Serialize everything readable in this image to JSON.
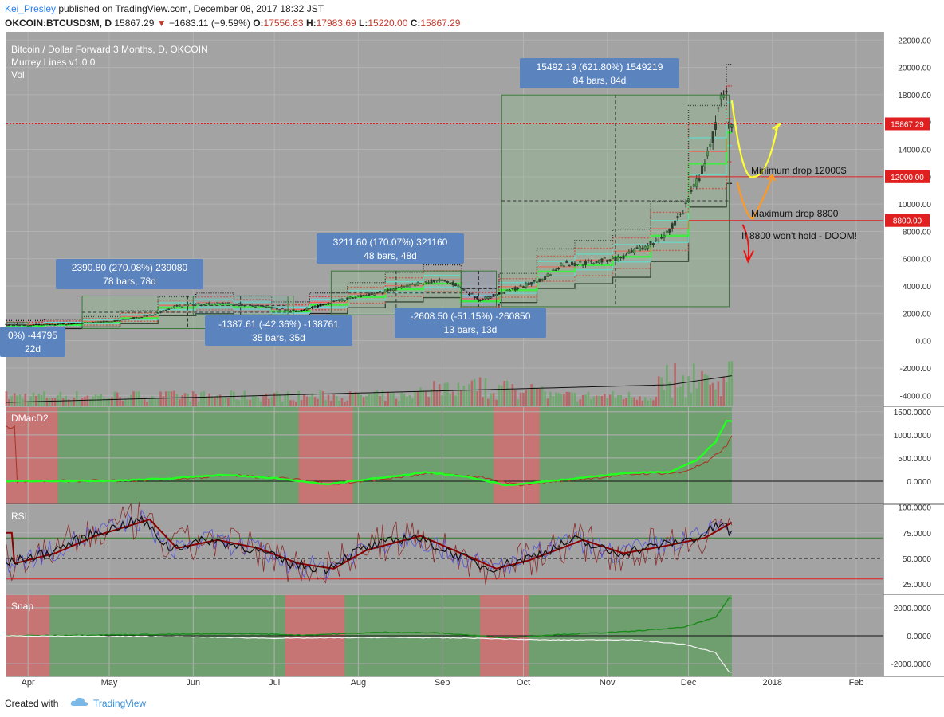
{
  "header": {
    "author": "Kei_Presley",
    "published": "published on TradingView.com, December 08, 2017 18:32 JST",
    "symbol": "OKCOIN:BTCUSD3M, D",
    "last": "15867.29",
    "change": "−1683.11 (−9.59%)",
    "o_label": "O:",
    "o_value": "17556.83",
    "h_label": "H:",
    "h_value": "17983.69",
    "l_label": "L:",
    "l_value": "15220.00",
    "c_label": "C:",
    "c_value": "15867.29"
  },
  "legend": {
    "title": "Bitcoin / Dollar Forward 3 Months, D, OKCOIN",
    "study1": "Murrey Lines v1.0.0",
    "study2": "Vol"
  },
  "footer": {
    "created": "Created with",
    "brand": "TradingView"
  },
  "colors": {
    "bg": "#a3a3a3",
    "green_zone": "#6f9e6f",
    "red_zone": "#c77474",
    "bright_green": "#22ff22",
    "yellow": "#ffff33",
    "orange": "#ff9922",
    "red_arrow": "#ee1111",
    "label_blue": "#5b84bf"
  },
  "chart_data": [
    {
      "panel": "main",
      "type": "candlestick",
      "title": "Bitcoin / Dollar Forward 3 Months, D, OKCOIN",
      "ylim": [
        -4800,
        22600
      ],
      "yticks": [
        "22000.00",
        "20000.00",
        "18000.00",
        "16000.00",
        "14000.00",
        "12000.00",
        "10000.00",
        "8000.00",
        "6000.00",
        "4000.00",
        "2000.00",
        "0.00",
        "-2000.00",
        "-4000.00"
      ],
      "ytick_values": [
        22000,
        20000,
        18000,
        16000,
        14000,
        12000,
        10000,
        8000,
        6000,
        4000,
        2000,
        0,
        -2000,
        -4000
      ],
      "x_tick_labels": [
        "Apr",
        "May",
        "Jun",
        "Jul",
        "Aug",
        "Sep",
        "Oct",
        "Nov",
        "Dec",
        "2018",
        "Feb"
      ],
      "x_tick_days": [
        8,
        38,
        69,
        99,
        130,
        161,
        191,
        222,
        252,
        283,
        314
      ],
      "xlim": [
        0,
        324
      ],
      "price_path": [
        [
          0,
          1200
        ],
        [
          8,
          1150
        ],
        [
          25,
          1250
        ],
        [
          40,
          1450
        ],
        [
          55,
          1900
        ],
        [
          62,
          2500
        ],
        [
          70,
          2700
        ],
        [
          80,
          2750
        ],
        [
          95,
          2500
        ],
        [
          108,
          2150
        ],
        [
          118,
          2700
        ],
        [
          128,
          3150
        ],
        [
          140,
          3600
        ],
        [
          152,
          4150
        ],
        [
          160,
          4400
        ],
        [
          166,
          4100
        ],
        [
          175,
          3000
        ],
        [
          185,
          3600
        ],
        [
          198,
          4450
        ],
        [
          205,
          5600
        ],
        [
          215,
          5700
        ],
        [
          228,
          6100
        ],
        [
          240,
          7300
        ],
        [
          245,
          8000
        ],
        [
          250,
          9500
        ],
        [
          256,
          12000
        ],
        [
          260,
          14000
        ],
        [
          264,
          17500
        ],
        [
          266,
          18000
        ],
        [
          267,
          16000
        ],
        [
          268,
          15867
        ]
      ],
      "last_price": "15867.29",
      "level_badges": [
        "12000.00",
        "8800.00"
      ],
      "level_values": [
        12000,
        8800
      ],
      "measure_boxes": [
        {
          "text1": "2390.80 (270.08%) 239080",
          "text2": "78 bars, 78d",
          "d1": 28,
          "d2": 106,
          "p1": 885,
          "p2": 3276
        },
        {
          "text1": "3211.60 (170.07%) 321160",
          "text2": "48 bars, 48d",
          "d1": 120,
          "d2": 168,
          "p1": 1888,
          "p2": 5100
        },
        {
          "text1": "15492.19 (621.80%) 1549219",
          "text2": "84 bars, 84d",
          "d1": 183,
          "d2": 267,
          "p1": 2492,
          "p2": 17984
        },
        {
          "text1": "-1387.61 (-42.36%) -138761",
          "text2": "35 bars, 35d",
          "d1": 69,
          "d2": 104,
          "p1": 3276,
          "p2": 1888
        },
        {
          "text1": "-2608.50 (-51.15%) -260850",
          "text2": "13 bars, 13d",
          "d1": 168,
          "d2": 181,
          "p1": 5100,
          "p2": 2492
        },
        {
          "text1": "0%) -44795",
          "text2": "22d",
          "d1": 0,
          "d2": 8,
          "p1": 1333,
          "p2": 885
        }
      ],
      "annotations": [
        "Minimum drop 12000$",
        "Maximum drop 8800",
        "If 8800 won't hold - DOOM!"
      ]
    },
    {
      "panel": "dmacd",
      "type": "line",
      "title": "DMacD2",
      "ylim": [
        -500,
        1600
      ],
      "yticks": [
        "1500.0000",
        "1000.0000",
        "500.0000",
        "0.0000"
      ],
      "ytick_values": [
        1500,
        1000,
        500,
        0
      ],
      "red_zones": [
        [
          0,
          19
        ],
        [
          108,
          128
        ],
        [
          180,
          197
        ]
      ],
      "series": [
        {
          "values": [
            [
              0,
              0
            ],
            [
              40,
              10
            ],
            [
              60,
              60
            ],
            [
              80,
              140
            ],
            [
              100,
              60
            ],
            [
              118,
              -70
            ],
            [
              135,
              50
            ],
            [
              155,
              190
            ],
            [
              170,
              100
            ],
            [
              185,
              -90
            ],
            [
              200,
              0
            ],
            [
              215,
              90
            ],
            [
              230,
              180
            ],
            [
              245,
              200
            ],
            [
              255,
              450
            ],
            [
              262,
              850
            ],
            [
              266,
              1300
            ]
          ]
        }
      ]
    },
    {
      "panel": "rsi",
      "type": "line",
      "title": "RSI",
      "ylim": [
        15,
        102
      ],
      "yticks": [
        "100.0000",
        "75.0000",
        "50.0000",
        "25.0000"
      ],
      "ytick_values": [
        100,
        75,
        50,
        25
      ],
      "series": [
        {
          "values": [
            [
              0,
              45
            ],
            [
              15,
              55
            ],
            [
              30,
              72
            ],
            [
              50,
              88
            ],
            [
              60,
              60
            ],
            [
              75,
              68
            ],
            [
              90,
              60
            ],
            [
              105,
              45
            ],
            [
              118,
              40
            ],
            [
              130,
              58
            ],
            [
              150,
              72
            ],
            [
              165,
              55
            ],
            [
              178,
              40
            ],
            [
              190,
              48
            ],
            [
              210,
              68
            ],
            [
              225,
              55
            ],
            [
              240,
              62
            ],
            [
              255,
              70
            ],
            [
              265,
              85
            ],
            [
              267,
              75
            ]
          ]
        }
      ]
    },
    {
      "panel": "snap",
      "type": "line",
      "title": "Snap",
      "ylim": [
        -2900,
        2900
      ],
      "yticks": [
        "2000.0000",
        "0.0000",
        "-2000.0000"
      ],
      "ytick_values": [
        2000,
        0,
        -2000
      ],
      "red_zones": [
        [
          0,
          16
        ],
        [
          103,
          125
        ],
        [
          175,
          193
        ]
      ],
      "series": [
        {
          "values": [
            [
              0,
              0
            ],
            [
              60,
              100
            ],
            [
              90,
              150
            ],
            [
              110,
              50
            ],
            [
              140,
              250
            ],
            [
              160,
              200
            ],
            [
              185,
              -150
            ],
            [
              200,
              50
            ],
            [
              230,
              300
            ],
            [
              250,
              600
            ],
            [
              262,
              1300
            ],
            [
              267,
              2700
            ]
          ]
        },
        {
          "values": [
            [
              0,
              0
            ],
            [
              60,
              -60
            ],
            [
              100,
              -180
            ],
            [
              140,
              -120
            ],
            [
              170,
              -160
            ],
            [
              200,
              -300
            ],
            [
              230,
              -280
            ],
            [
              250,
              -600
            ],
            [
              262,
              -1200
            ],
            [
              267,
              -2600
            ]
          ]
        }
      ]
    }
  ]
}
